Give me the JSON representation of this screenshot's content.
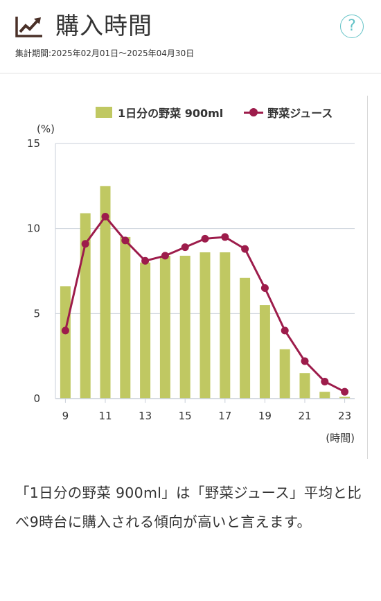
{
  "header": {
    "title": "購入時間",
    "period": "集計期間:2025年02月01日～2025年04月30日",
    "help_label": "?"
  },
  "colors": {
    "bar": "#c0c862",
    "line": "#9d1c4b",
    "help": "#62c2c6",
    "grid": "#c8cfd8"
  },
  "chart_data": {
    "type": "bar",
    "title": "",
    "ylabel": "(%)",
    "xlabel": "(時間)",
    "ylim": [
      0,
      15
    ],
    "y_ticks": [
      0,
      5,
      10,
      15
    ],
    "x": [
      9,
      10,
      11,
      12,
      13,
      14,
      15,
      16,
      17,
      18,
      19,
      20,
      21,
      22,
      23
    ],
    "x_tick_labels": [
      "9",
      "11",
      "13",
      "15",
      "17",
      "19",
      "21",
      "23"
    ],
    "grid": true,
    "legend_position": "top",
    "series": [
      {
        "name": "1日分の野菜 900ml",
        "type": "bar",
        "values": [
          6.6,
          10.9,
          12.5,
          9.5,
          8.0,
          8.4,
          8.4,
          8.6,
          8.6,
          7.1,
          5.5,
          2.9,
          1.5,
          0.4,
          0.1
        ]
      },
      {
        "name": "野菜ジュース",
        "type": "line",
        "values": [
          4.0,
          9.1,
          10.7,
          9.3,
          8.1,
          8.4,
          8.9,
          9.4,
          9.5,
          8.8,
          6.5,
          4.0,
          2.2,
          1.0,
          0.4
        ]
      }
    ]
  },
  "comment": "「1日分の野菜 900ml」は「野菜ジュース」平均と比べ9時台に購入される傾向が高いと言えます。"
}
